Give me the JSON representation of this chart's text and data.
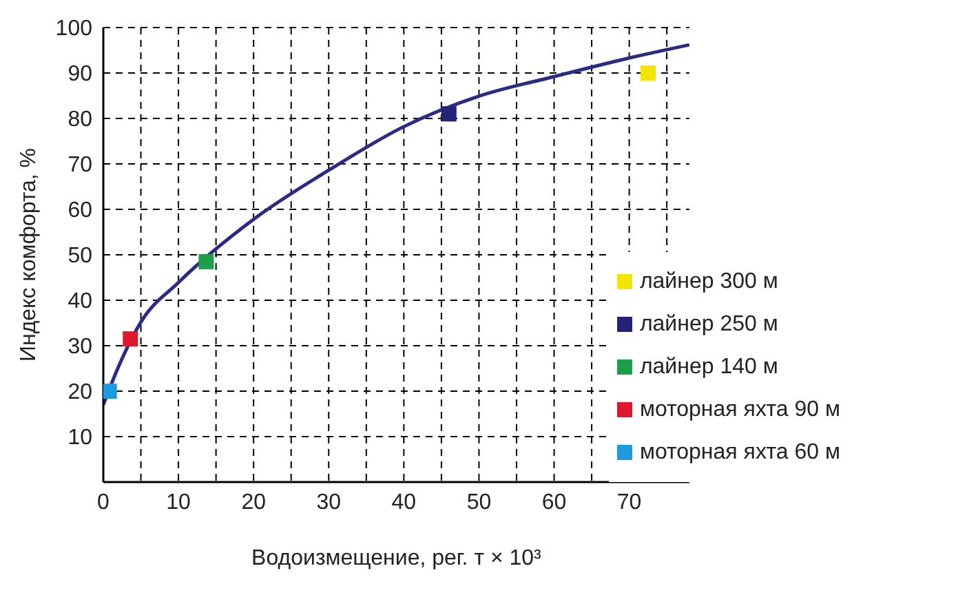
{
  "chart_data": {
    "type": "scatter",
    "xlabel": "Водоизмещение, рег. т × 10³",
    "ylabel": "Индекс комфорта, %",
    "xlim": [
      0,
      78
    ],
    "ylim": [
      0,
      100
    ],
    "xticks": [
      0,
      {
        "value": 5,
        "label": null
      },
      10,
      {
        "value": 15,
        "label": null
      },
      20,
      {
        "value": 25,
        "label": null
      },
      30,
      {
        "value": 35,
        "label": null
      },
      40,
      {
        "value": 45,
        "label": null
      },
      50,
      {
        "value": 55,
        "label": null
      },
      60,
      {
        "value": 65,
        "label": null
      },
      70,
      {
        "value": 75,
        "label": null
      }
    ],
    "yticks": [
      10,
      20,
      30,
      40,
      50,
      60,
      70,
      80,
      90,
      100
    ],
    "grid": true,
    "legend": "bottom right",
    "marker": "square",
    "series": [
      {
        "type": "line",
        "marker": "none",
        "color": "#2b2a85",
        "x": [
          0,
          2,
          5,
          10,
          20,
          30,
          40,
          50,
          60,
          70,
          78
        ],
        "values": [
          17,
          25.3,
          35.2,
          43.9,
          57.8,
          68.6,
          78.2,
          84.9,
          89.2,
          93.3,
          96.2
        ]
      },
      {
        "name": "лайнер 300 м",
        "color": "#f2e600",
        "x": [
          72.5
        ],
        "values": [
          90
        ]
      },
      {
        "name": "лайнер 250 м",
        "color": "#23237a",
        "x": [
          46
        ],
        "values": [
          81
        ]
      },
      {
        "name": "лайнер 140 м",
        "color": "#1e9e48",
        "x": [
          13.7
        ],
        "values": [
          48.5
        ]
      },
      {
        "name": "моторная яхта 90 м",
        "color": "#e0182d",
        "x": [
          3.6
        ],
        "values": [
          31.5
        ]
      },
      {
        "name": "моторная яхта 60 м",
        "color": "#1e9be0",
        "x": [
          0.8
        ],
        "values": [
          20
        ]
      }
    ]
  }
}
